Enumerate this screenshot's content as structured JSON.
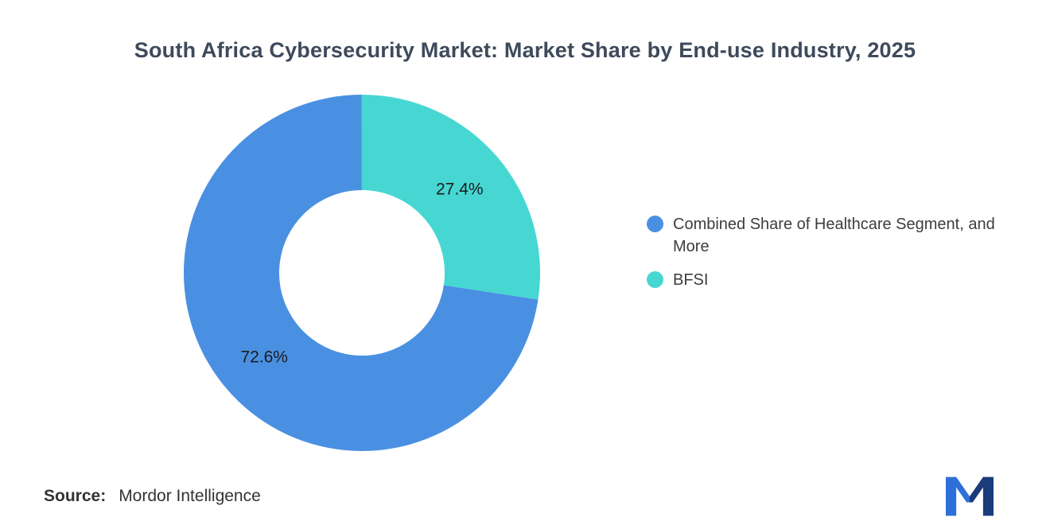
{
  "title": "South Africa Cybersecurity Market: Market Share by End-use Industry, 2025",
  "source": {
    "label": "Source:",
    "value": "Mordor Intelligence"
  },
  "logo": {
    "name": "mordor-intelligence-logo",
    "colors": [
      "#2e6fd9",
      "#1a3b7c"
    ]
  },
  "chart_data": {
    "type": "pie",
    "donut": true,
    "title": "South Africa Cybersecurity Market: Market Share by End-use Industry, 2025",
    "labels": [
      "Combined Share of Healthcare Segment, and More",
      "BFSI"
    ],
    "values": [
      72.6,
      27.4
    ],
    "data_labels": [
      "72.6%",
      "27.4%"
    ],
    "colors": [
      "#4a90e2",
      "#46d7d3"
    ],
    "start_angle_deg": 98.6,
    "legend_position": "right",
    "background": "#ffffff"
  }
}
